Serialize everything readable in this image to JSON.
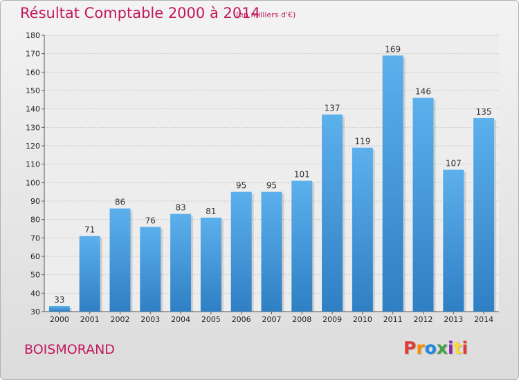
{
  "title": "Résultat Comptable 2000 à 2014",
  "subtitle": "(en milliers d'€)",
  "commune": "BOISMORAND",
  "logo": {
    "p": "P",
    "r": "r",
    "o": "o",
    "x": "x",
    "i1": "i",
    "t": "t",
    "i2": "i"
  },
  "colors": {
    "bar": "#4a9fe0",
    "bar_dark": "#2f7fc4",
    "title": "#c2185b",
    "grid": "#c8c8c8"
  },
  "chart_data": {
    "type": "bar",
    "title": "Résultat Comptable 2000 à 2014",
    "ylabel": "(en milliers d'€)",
    "xlabel": "",
    "categories": [
      "2000",
      "2001",
      "2002",
      "2003",
      "2004",
      "2005",
      "2006",
      "2007",
      "2008",
      "2009",
      "2010",
      "2011",
      "2012",
      "2013",
      "2014"
    ],
    "values": [
      33,
      71,
      86,
      76,
      83,
      81,
      95,
      95,
      101,
      137,
      119,
      169,
      146,
      107,
      135
    ],
    "ylim": [
      30,
      180
    ],
    "yticks": [
      30,
      40,
      50,
      60,
      70,
      80,
      90,
      100,
      110,
      120,
      130,
      140,
      150,
      160,
      170,
      180
    ],
    "grid": true
  }
}
